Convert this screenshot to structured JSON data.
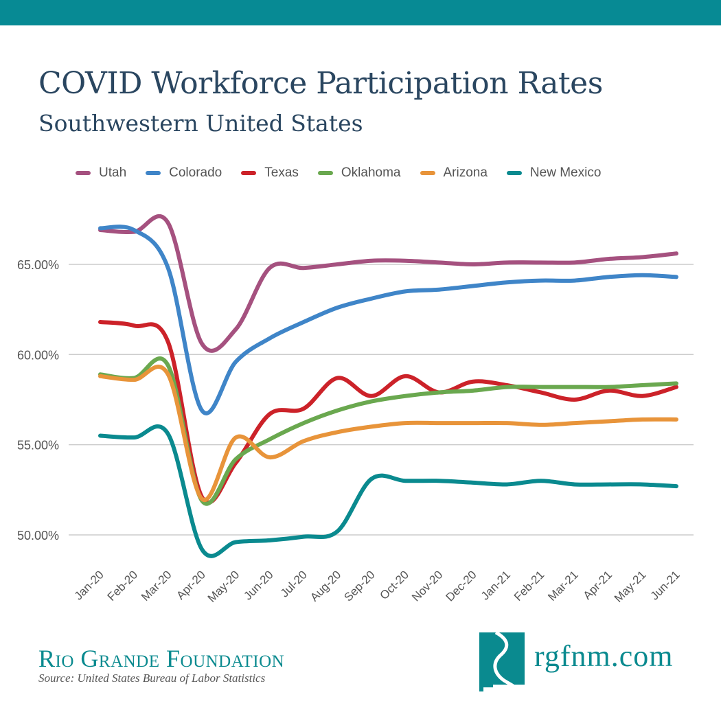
{
  "colors": {
    "band": "#078a94",
    "title": "#2a4660",
    "grid": "#cccccc"
  },
  "header": {
    "title": "COVID Workforce Participation Rates",
    "subtitle": "Southwestern United States"
  },
  "footer": {
    "org": "Rio Grande Foundation",
    "source": "Source: United States Bureau of Labor Statistics",
    "url": "rgfnm.com",
    "logo_icon": "new-mexico-river-logo-icon"
  },
  "chart_data": {
    "type": "line",
    "title": "COVID Workforce Participation Rates",
    "subtitle": "Southwestern United States",
    "xlabel": "",
    "ylabel": "",
    "ylim": [
      48,
      68
    ],
    "yticks": [
      50,
      55,
      60,
      65
    ],
    "ytick_labels": [
      "50.00%",
      "55.00%",
      "60.00%",
      "65.00%"
    ],
    "grid": true,
    "legend_position": "top",
    "categories": [
      "Jan-20",
      "Feb-20",
      "Mar-20",
      "Apr-20",
      "May-20",
      "Jun-20",
      "Jul-20",
      "Aug-20",
      "Sep-20",
      "Oct-20",
      "Nov-20",
      "Dec-20",
      "Jan-21",
      "Feb-21",
      "Mar-21",
      "Apr-21",
      "May-21",
      "Jun-21"
    ],
    "series": [
      {
        "name": "Utah",
        "color": "#a5517f",
        "values": [
          66.9,
          66.8,
          67.3,
          60.6,
          61.4,
          64.8,
          64.8,
          65.0,
          65.2,
          65.2,
          65.1,
          65.0,
          65.1,
          65.1,
          65.1,
          65.3,
          65.4,
          65.6
        ]
      },
      {
        "name": "Colorado",
        "color": "#3f85c8",
        "values": [
          67.0,
          66.9,
          64.8,
          56.9,
          59.6,
          60.9,
          61.8,
          62.6,
          63.1,
          63.5,
          63.6,
          63.8,
          64.0,
          64.1,
          64.1,
          64.3,
          64.4,
          64.3
        ]
      },
      {
        "name": "Texas",
        "color": "#cc2229",
        "values": [
          61.8,
          61.6,
          60.7,
          52.1,
          54.0,
          56.7,
          57.0,
          58.7,
          57.7,
          58.8,
          57.9,
          58.5,
          58.3,
          57.9,
          57.5,
          58.0,
          57.7,
          58.2
        ]
      },
      {
        "name": "Oklahoma",
        "color": "#6aa84f",
        "values": [
          58.9,
          58.7,
          59.4,
          51.9,
          54.2,
          55.3,
          56.2,
          56.9,
          57.4,
          57.7,
          57.9,
          58.0,
          58.2,
          58.2,
          58.2,
          58.2,
          58.3,
          58.4
        ]
      },
      {
        "name": "Arizona",
        "color": "#e8943a",
        "values": [
          58.8,
          58.6,
          58.9,
          52.0,
          55.4,
          54.3,
          55.2,
          55.7,
          56.0,
          56.2,
          56.2,
          56.2,
          56.2,
          56.1,
          56.2,
          56.3,
          56.4,
          56.4
        ]
      },
      {
        "name": "New Mexico",
        "color": "#0a8a8f",
        "values": [
          55.5,
          55.4,
          55.6,
          49.2,
          49.6,
          49.7,
          49.9,
          50.2,
          53.1,
          53.0,
          53.0,
          52.9,
          52.8,
          53.0,
          52.8,
          52.8,
          52.8,
          52.7
        ]
      }
    ]
  }
}
